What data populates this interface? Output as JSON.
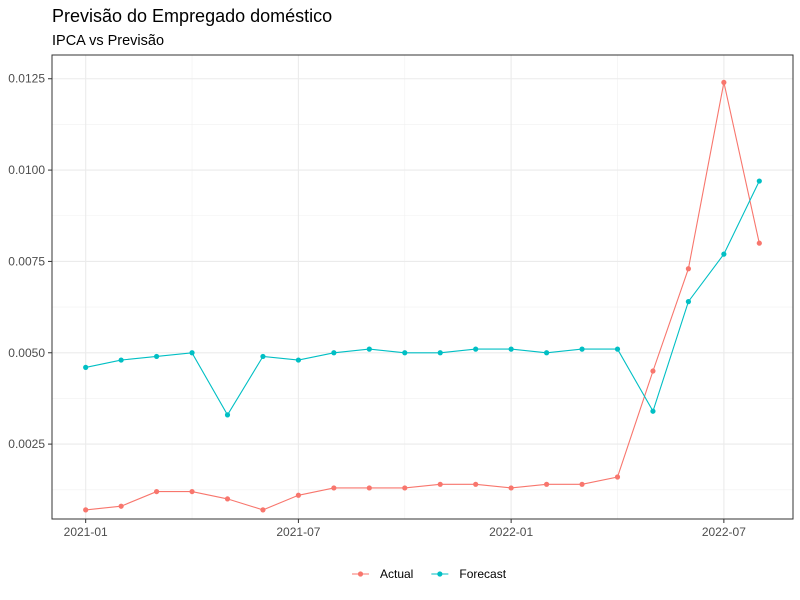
{
  "title": "Previsão do Empregado doméstico",
  "subtitle": "IPCA vs Previsão",
  "chart_data": {
    "type": "line",
    "x": [
      "2021-01",
      "2021-02",
      "2021-03",
      "2021-04",
      "2021-05",
      "2021-06",
      "2021-07",
      "2021-08",
      "2021-09",
      "2021-10",
      "2021-11",
      "2021-12",
      "2022-01",
      "2022-02",
      "2022-03",
      "2022-04",
      "2022-05",
      "2022-06",
      "2022-07",
      "2022-08"
    ],
    "x_ticks": [
      "2021-01",
      "2021-07",
      "2022-01",
      "2022-07"
    ],
    "y_ticks": [
      "0.0025",
      "0.0050",
      "0.0075",
      "0.0100",
      "0.0125"
    ],
    "ylim": [
      0.00045,
      0.01315
    ],
    "grid": true,
    "legend_position": "bottom",
    "series": [
      {
        "name": "Actual",
        "color": "#F8766D",
        "values": [
          0.0007,
          0.0008,
          0.0012,
          0.0012,
          0.001,
          0.0007,
          0.0011,
          0.0013,
          0.0013,
          0.0013,
          0.0014,
          0.0014,
          0.0013,
          0.0014,
          0.0014,
          0.0016,
          0.0045,
          0.0073,
          0.0124,
          0.008
        ]
      },
      {
        "name": "Forecast",
        "color": "#00BFC4",
        "values": [
          0.0046,
          0.0048,
          0.0049,
          0.005,
          0.0033,
          0.0049,
          0.0048,
          0.005,
          0.0051,
          0.005,
          0.005,
          0.0051,
          0.0051,
          0.005,
          0.0051,
          0.0051,
          0.0034,
          0.0064,
          0.0077,
          0.0097
        ]
      }
    ]
  }
}
